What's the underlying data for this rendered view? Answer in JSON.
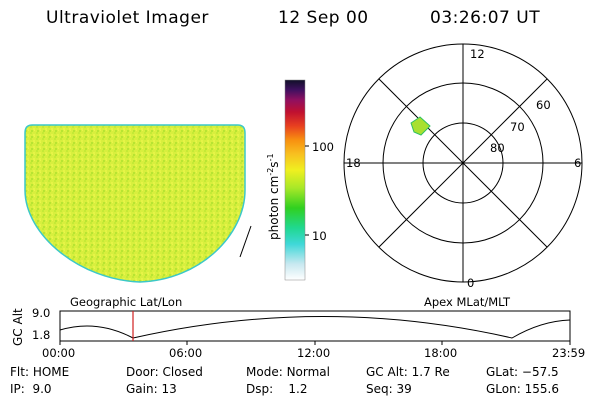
{
  "header": {
    "instrument": "Ultraviolet Imager",
    "date": "12 Sep 00",
    "time": "03:26:07 UT"
  },
  "colorbar": {
    "unit_label_prefix": "photon cm",
    "unit_exp1": "-2",
    "unit_mid": "s",
    "unit_exp2": "-1",
    "ticks": [
      "100",
      "10"
    ]
  },
  "polar_plot": {
    "mlt_labels": {
      "top": "12",
      "left": "18",
      "right": "6",
      "bottom": "0"
    },
    "lat_labels": [
      "60",
      "70",
      "80"
    ]
  },
  "panel_labels": {
    "left": "Geographic Lat/Lon",
    "right": "Apex MLat/MLT"
  },
  "altitude_plot": {
    "ylabel": "GC Alt",
    "yticks": [
      "9.0",
      "1.8"
    ],
    "xticks": [
      "00:00",
      "06:00",
      "12:00",
      "18:00",
      "23:59"
    ]
  },
  "status": {
    "row1": [
      {
        "label": "Flt:",
        "value": "HOME"
      },
      {
        "label": "Door:",
        "value": "Closed"
      },
      {
        "label": "Mode:",
        "value": "Normal"
      },
      {
        "label": "GC Alt:",
        "value": "1.7 Re"
      },
      {
        "label": "GLat:",
        "value": "−57.5"
      }
    ],
    "row2": [
      {
        "label": "IP:",
        "value": "9.0"
      },
      {
        "label": "Gain:",
        "value": "13"
      },
      {
        "label": "Dsp:",
        "value": "1.2"
      },
      {
        "label": "Seq:",
        "value": "39"
      },
      {
        "label": "GLon:",
        "value": "155.6"
      }
    ]
  },
  "colors": {
    "image_fill": "#d9f040",
    "image_edge": "#3cc8c8",
    "marker": "#d02020"
  }
}
